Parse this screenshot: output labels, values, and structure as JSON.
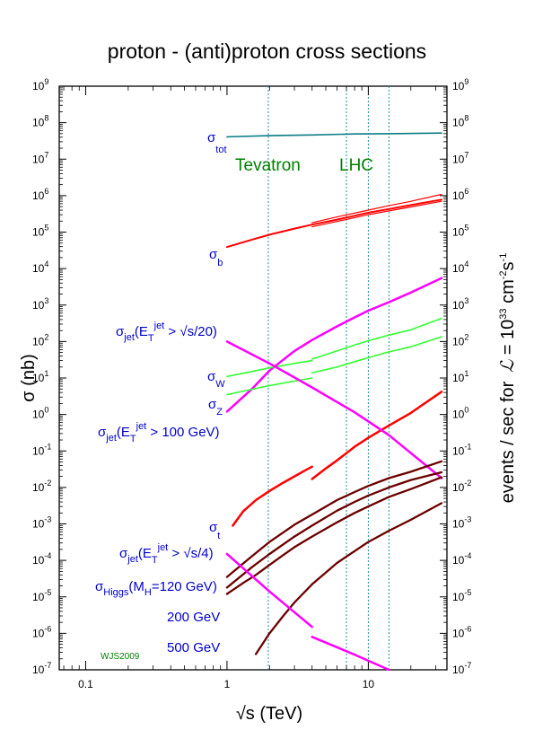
{
  "colors": {
    "tot": "#0b7c84",
    "b": "#ff0000",
    "jet_s20": "#ff00ff",
    "w_z": "#33ff33",
    "jet_100": "#ff0000",
    "top": "#6b0000",
    "jet_s4": "#ff00ff",
    "higgs": "#6b0000",
    "annotation": "#0000cc",
    "machine": "#008000",
    "vline": "#2090a0"
  },
  "chart_data": {
    "type": "line",
    "title": "proton - (anti)proton cross sections",
    "xlabel": "√s (TeV)",
    "ylabel": "σ (nb)",
    "ylabel_right": "events / sec for",
    "x_scale": "log",
    "y_scale": "log",
    "xlim": [
      0.065,
      36
    ],
    "ylim": [
      1e-07,
      1000000000.0
    ],
    "x_ticks": [
      {
        "v": 0.1,
        "label": "0.1"
      },
      {
        "v": 1,
        "label": "1"
      },
      {
        "v": 10,
        "label": "10"
      }
    ],
    "y_ticks": [
      {
        "e": 9,
        "b": "10",
        "s": "9"
      },
      {
        "e": 8,
        "b": "10",
        "s": "8"
      },
      {
        "e": 7,
        "b": "10",
        "s": "7"
      },
      {
        "e": 6,
        "b": "10",
        "s": "6"
      },
      {
        "e": 5,
        "b": "10",
        "s": "5"
      },
      {
        "e": 4,
        "b": "10",
        "s": "4"
      },
      {
        "e": 3,
        "b": "10",
        "s": "3"
      },
      {
        "e": 2,
        "b": "10",
        "s": "2"
      },
      {
        "e": 1,
        "b": "10",
        "s": "1"
      },
      {
        "e": 0,
        "b": "10",
        "s": "0"
      },
      {
        "e": -1,
        "b": "10",
        "s": "-1"
      },
      {
        "e": -2,
        "b": "10",
        "s": "-2"
      },
      {
        "e": -3,
        "b": "10",
        "s": "-3"
      },
      {
        "e": -4,
        "b": "10",
        "s": "-4"
      },
      {
        "e": -5,
        "b": "10",
        "s": "-5"
      },
      {
        "e": -6,
        "b": "10",
        "s": "-6"
      },
      {
        "e": -7,
        "b": "10",
        "s": "-7"
      }
    ],
    "vlines": [
      1.96,
      7,
      10,
      14
    ],
    "grid": false,
    "series": [
      {
        "key": "tot",
        "x": [
          1,
          2,
          4,
          8,
          14,
          33
        ],
        "y": [
          41000000.0,
          44000000.0,
          46000000.0,
          49000000.0,
          50000000.0,
          52000000.0
        ],
        "width": 1.6
      },
      {
        "key": "b",
        "x": [
          1,
          1.5,
          2,
          3,
          4,
          6,
          8,
          10,
          14,
          20,
          33
        ],
        "y": [
          39000.0,
          62000.0,
          85000.0,
          125000.0,
          160000.0,
          220000.0,
          280000.0,
          340000.0,
          430000.0,
          550000.0,
          780000.0
        ],
        "width": 2
      },
      {
        "key": "b",
        "x": [
          4,
          6,
          10,
          14,
          20,
          33
        ],
        "y": [
          180000.0,
          260000.0,
          400000.0,
          530000.0,
          700000.0,
          1080000.0
        ],
        "width": 1.2
      },
      {
        "key": "b",
        "x": [
          4,
          6,
          10,
          14,
          20,
          33
        ],
        "y": [
          140000.0,
          195000.0,
          300000.0,
          380000.0,
          490000.0,
          700000.0
        ],
        "width": 1.2
      },
      {
        "key": "jet_s20",
        "x": [
          1,
          1.5,
          2,
          3,
          4,
          6,
          8,
          10,
          14,
          20,
          33
        ],
        "y": [
          1.2,
          5,
          16,
          55,
          110,
          260,
          460,
          700,
          1200,
          2200,
          5500
        ],
        "width": 2.5
      },
      {
        "key": "w_z",
        "x": [
          1,
          1.5,
          2,
          3,
          4
        ],
        "y": [
          11,
          15,
          19,
          25,
          30
        ],
        "width": 1.6
      },
      {
        "key": "w_z",
        "x": [
          4,
          6,
          8,
          10,
          14,
          20,
          33
        ],
        "y": [
          33,
          55,
          80,
          105,
          150,
          210,
          430
        ],
        "width": 1.6
      },
      {
        "key": "w_z",
        "x": [
          1,
          1.5,
          2,
          3,
          4
        ],
        "y": [
          3.5,
          4.9,
          6.2,
          8.2,
          10
        ],
        "width": 1.6
      },
      {
        "key": "w_z",
        "x": [
          4,
          6,
          8,
          10,
          14,
          20,
          33
        ],
        "y": [
          14,
          20,
          28,
          36,
          52,
          72,
          135
        ],
        "width": 1.6
      },
      {
        "key": "jet_100",
        "x": [
          1.1,
          1.3,
          1.6,
          2,
          2.5,
          3,
          3.5,
          4
        ],
        "y": [
          0.0009,
          0.0022,
          0.0045,
          0.008,
          0.0135,
          0.02,
          0.028,
          0.037
        ],
        "width": 2.5
      },
      {
        "key": "jet_100",
        "x": [
          4,
          5,
          6,
          8,
          10,
          14,
          20,
          33
        ],
        "y": [
          0.017,
          0.033,
          0.055,
          0.13,
          0.23,
          0.5,
          1.1,
          4.2
        ],
        "width": 2.5
      },
      {
        "key": "jet_s4",
        "x": [
          1,
          2,
          4,
          8,
          14,
          33
        ],
        "y": [
          100,
          25,
          5.5,
          1.15,
          0.27,
          0.018
        ],
        "width": 2.5
      },
      {
        "key": "top",
        "x": [
          1,
          1.5,
          2,
          3,
          4,
          6,
          8,
          10,
          14,
          20,
          33
        ],
        "y": [
          3.5e-05,
          0.00013,
          0.00032,
          0.00095,
          0.0018,
          0.0045,
          0.0075,
          0.011,
          0.018,
          0.027,
          0.052
        ],
        "width": 2.3
      },
      {
        "key": "top",
        "x": [
          1,
          1.5,
          2,
          3,
          4,
          6,
          8,
          10,
          14,
          20,
          33
        ],
        "y": [
          1.8e-05,
          6.5e-05,
          0.00015,
          0.00045,
          0.0009,
          0.0023,
          0.004,
          0.006,
          0.01,
          0.016,
          0.026
        ],
        "width": 2.3
      },
      {
        "key": "higgs",
        "x": [
          1,
          1.3,
          1.6,
          2,
          2.5,
          3,
          4,
          6,
          8,
          10,
          14,
          20,
          33
        ],
        "y": [
          1.2e-05,
          2.4e-05,
          4e-05,
          7.5e-05,
          0.00014,
          0.00023,
          0.00045,
          0.0011,
          0.002,
          0.003,
          0.0055,
          0.009,
          0.019
        ],
        "width": 2.3
      },
      {
        "key": "higgs",
        "x": [
          1.6,
          2,
          2.5,
          3,
          4,
          6,
          8,
          10,
          14,
          20,
          33
        ],
        "y": [
          2.7e-07,
          1e-06,
          3e-06,
          7e-06,
          2.2e-05,
          8.5e-05,
          0.00018,
          0.00032,
          0.00065,
          0.0013,
          0.0037
        ],
        "width": 2.3
      },
      {
        "key": "jet_s4",
        "x": [
          1,
          2,
          4
        ],
        "y": [
          0.00015,
          1.4e-05,
          1.5e-06
        ],
        "width": 2.5
      },
      {
        "key": "jet_s4",
        "x": [
          4,
          8,
          14
        ],
        "y": [
          8e-07,
          2.6e-07,
          1e-07
        ],
        "width": 2.5
      }
    ]
  },
  "labels": {
    "tevatron": "Tevatron",
    "lhc": "LHC",
    "credit": "WJS2009",
    "sigma_tot": {
      "main": "σ",
      "sub": "tot"
    },
    "sigma_b": {
      "main": "σ",
      "sub": "b"
    },
    "sigma_w": {
      "main": "σ",
      "sub": "W"
    },
    "sigma_z": {
      "main": "σ",
      "sub": "Z"
    },
    "sigma_t": {
      "main": "σ",
      "sub": "t"
    },
    "jet_s20": {
      "main": "σ",
      "sub": "jet",
      "open": "(E",
      "sub2": "T",
      "sup": "jet",
      "close": " > √s/20)"
    },
    "jet_100": {
      "main": "σ",
      "sub": "jet",
      "open": "(E",
      "sub2": "T",
      "sup": "jet",
      "close": " > 100 GeV)"
    },
    "jet_s4": {
      "main": "σ",
      "sub": "jet",
      "open": "(E",
      "sub2": "T",
      "sup": "jet",
      "close": " > √s/4)"
    },
    "higgs": {
      "main": "σ",
      "sub": "Higgs",
      "rest": "(M",
      "sub2": "H",
      "close": "=120 GeV)"
    },
    "higgs_200": "200 GeV",
    "higgs_500": "500 GeV",
    "right_axis": {
      "text": "events / sec for",
      "lum_symbol": "ℒ",
      "eq": " = 10",
      "exp1": "33",
      "unit": " cm",
      "exp2": "-2",
      "s": "s",
      "exp3": "-1"
    }
  }
}
